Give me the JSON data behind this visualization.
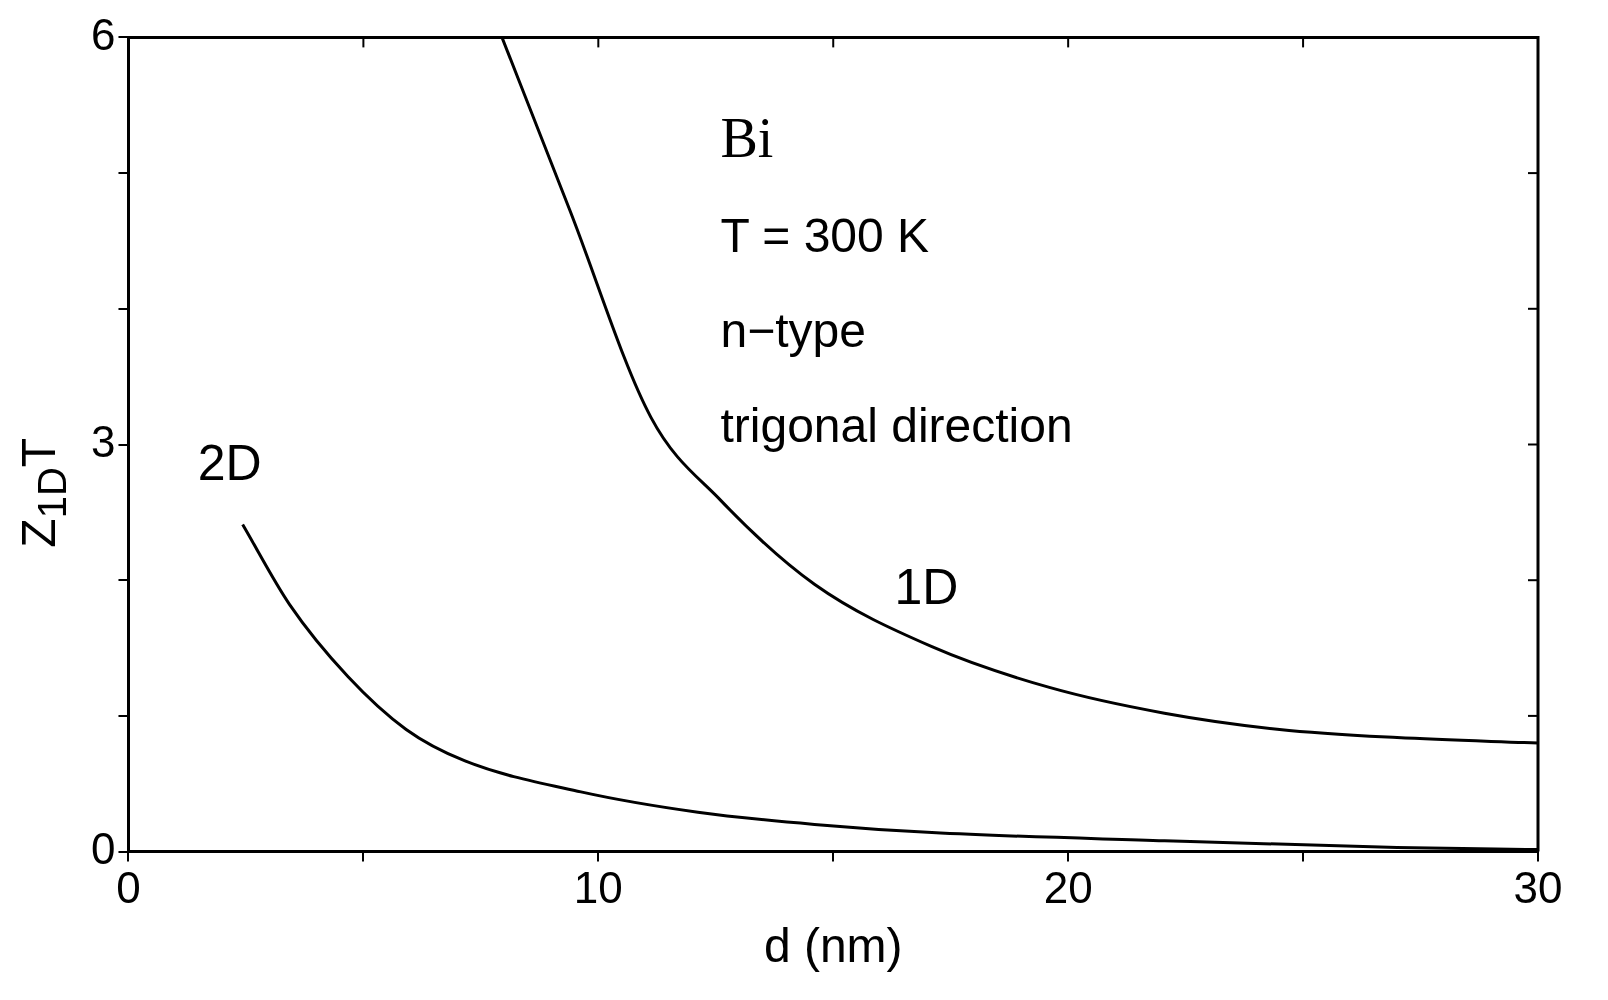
{
  "chart_data": {
    "type": "line",
    "xlabel": "d (nm)",
    "ylabel": "Z$_{1D}$T",
    "xlim": [
      0,
      30
    ],
    "ylim": [
      0,
      6
    ],
    "xticks": [
      0,
      {
        "value": 5,
        "label": null
      },
      10,
      {
        "value": 15,
        "label": null
      },
      20,
      {
        "value": 25,
        "label": null
      },
      30
    ],
    "yticks": [
      0,
      {
        "value": 1,
        "label": null
      },
      {
        "value": 2,
        "label": null
      },
      3,
      {
        "value": 4,
        "label": null
      },
      {
        "value": 5,
        "label": null
      },
      6
    ],
    "grid": false,
    "marker": "none",
    "line_style": "solid",
    "annotations": [
      "Bi",
      "T = 300 K",
      "n−type",
      "trigonal direction"
    ],
    "series": [
      {
        "name": "1D",
        "color": "#000000",
        "x": [
          7.95,
          9.39,
          11.12,
          12.6,
          14.6,
          17.1,
          19.6,
          22.05,
          24.5,
          27.0,
          30
        ],
        "values": [
          6,
          4.73,
          3.2,
          2.59,
          1.97,
          1.51,
          1.21,
          1.02,
          0.9,
          0.84,
          0.8
        ]
      },
      {
        "name": "2D",
        "color": "#000000",
        "x": [
          2.43,
          3.43,
          4.67,
          5.91,
          7.15,
          9.63,
          12.12,
          14.6,
          17.1,
          22.05,
          27,
          30
        ],
        "values": [
          2.41,
          1.82,
          1.29,
          0.9,
          0.67,
          0.44,
          0.29,
          0.2,
          0.14,
          0.08,
          0.03,
          0.015
        ]
      }
    ]
  }
}
